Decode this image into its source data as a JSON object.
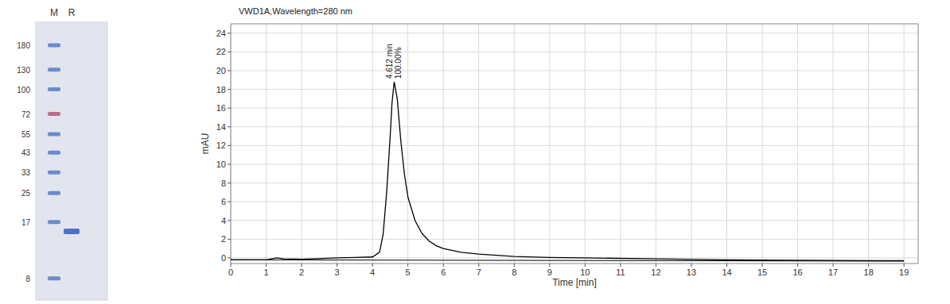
{
  "chart_data": [
    {
      "type": "gel",
      "categories": [
        "M",
        "R"
      ],
      "log": "y",
      "ylim": [
        6,
        245
      ],
      "yticks": [
        180,
        130,
        100,
        72,
        55,
        43,
        33,
        25,
        17,
        8
      ],
      "bands": [
        [
          180,
          130,
          100,
          72,
          55,
          43,
          33,
          25,
          17,
          8
        ],
        [
          15
        ]
      ],
      "colors": [
        [
          "#5a82c9",
          "#5a82c9",
          "#5a82c9",
          "#b7607e",
          "#5a82c9",
          "#5a82c9",
          "#5a82c9",
          "#5a82c9",
          "#5a82c9",
          "#5a82c9"
        ],
        [
          "#3d64c0"
        ]
      ]
    },
    {
      "type": "line",
      "title": "VWD1A,Wavelength=280 nm",
      "x_label": "Time [min]",
      "y_label": "mAU",
      "xlim": [
        0,
        19.4
      ],
      "ylim": [
        -0.6,
        25
      ],
      "xticks": [
        0,
        1,
        2,
        3,
        4,
        5,
        6,
        7,
        8,
        9,
        10,
        11,
        12,
        13,
        14,
        15,
        16,
        17,
        18,
        19
      ],
      "yticks": [
        0,
        2,
        4,
        6,
        8,
        10,
        12,
        14,
        16,
        18,
        20,
        22,
        24
      ],
      "grid": true,
      "series": [
        {
          "color": "#000000",
          "x": [
            0,
            1,
            1.3,
            1.5,
            2,
            3,
            3.5,
            4,
            4.2,
            4.3,
            4.4,
            4.5,
            4.55,
            4.612,
            4.7,
            4.8,
            4.9,
            5.0,
            5.2,
            5.4,
            5.6,
            5.8,
            6,
            6.5,
            7,
            8,
            9,
            10,
            12,
            14,
            16,
            18,
            19
          ],
          "values": [
            -0.2,
            -0.2,
            0,
            -0.1,
            -0.15,
            0,
            0.05,
            0.1,
            0.6,
            2.5,
            7,
            13,
            16.5,
            18.8,
            17,
            12.5,
            9,
            6.5,
            4,
            2.6,
            1.8,
            1.3,
            1.0,
            0.6,
            0.4,
            0.15,
            0.05,
            0,
            -0.1,
            -0.2,
            -0.25,
            -0.3,
            -0.3
          ]
        },
        {
          "color": "#000000",
          "x": [
            0,
            19
          ],
          "values": [
            -0.2,
            -0.35
          ]
        }
      ],
      "annotations": [
        {
          "x": 4.612,
          "y": 18.8,
          "text": "4.612 min"
        },
        {
          "x": 4.612,
          "y": 18.8,
          "text": "100.00%"
        }
      ]
    }
  ]
}
